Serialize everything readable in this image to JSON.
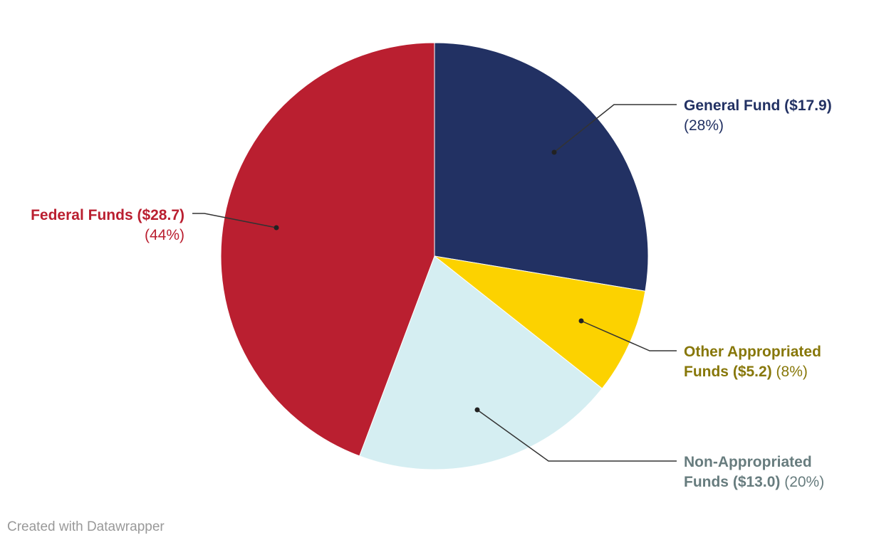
{
  "chart_data": {
    "type": "pie",
    "categories": [
      "General Fund",
      "Other Appropriated Funds",
      "Non-Appropriated Funds",
      "Federal Funds"
    ],
    "values": [
      17.9,
      5.2,
      13.0,
      28.7
    ],
    "percent": [
      "28%",
      "8%",
      "20%",
      "44%"
    ],
    "colors": [
      "#223163",
      "#fcd200",
      "#d5eef2",
      "#ba1f30"
    ],
    "labels": [
      {
        "lines": [
          [
            {
              "t": "General Fund ($17.9)",
              "b": true
            }
          ],
          [
            {
              "t": "(28%)",
              "b": false
            }
          ]
        ],
        "color": "#223163"
      },
      {
        "lines": [
          [
            {
              "t": "Other Appropriated",
              "b": true
            }
          ],
          [
            {
              "t": "Funds ($5.2)",
              "b": true
            },
            {
              "t": " (8%)",
              "b": false
            }
          ]
        ],
        "color": "#877709"
      },
      {
        "lines": [
          [
            {
              "t": "Non-Appropriated",
              "b": true
            }
          ],
          [
            {
              "t": "Funds ($13.0)",
              "b": true
            },
            {
              "t": " (20%)",
              "b": false
            }
          ]
        ],
        "color": "#677c7e"
      },
      {
        "lines": [
          [
            {
              "t": "Federal Funds ($28.7)",
              "b": true
            }
          ],
          [
            {
              "t": "(44%)",
              "b": false
            }
          ]
        ],
        "color": "#ba1f30"
      }
    ]
  },
  "footer": {
    "credit": "Created with Datawrapper"
  }
}
